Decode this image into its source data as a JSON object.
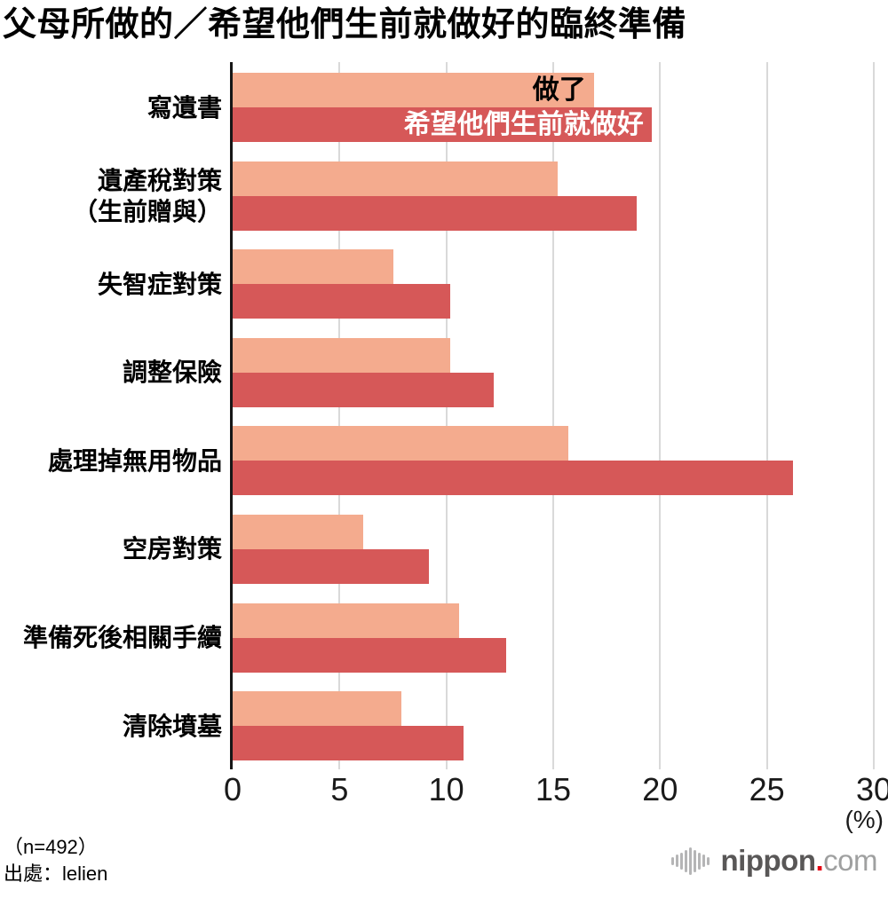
{
  "title": "父母所做的／希望他們生前就做好的臨終準備",
  "chart_data": {
    "type": "bar",
    "orientation": "horizontal",
    "title": "父母所做的／希望他們生前就做好的臨終準備",
    "categories": [
      "寫遺書",
      "遺產稅對策\n（生前贈與）",
      "失智症對策",
      "調整保險",
      "處理掉無用物品",
      "空房對策",
      "準備死後相關手續",
      "清除墳墓"
    ],
    "series": [
      {
        "name": "做了",
        "color": "#F4AB8E",
        "label_color": "#000000",
        "values": [
          16.9,
          15.2,
          7.5,
          10.2,
          15.7,
          6.1,
          10.6,
          7.9
        ]
      },
      {
        "name": "希望他們生前就做好",
        "color": "#D65858",
        "label_color": "#ffffff",
        "values": [
          19.6,
          18.9,
          10.2,
          12.2,
          26.2,
          9.2,
          12.8,
          10.8
        ]
      }
    ],
    "xlim": [
      0,
      30
    ],
    "xticks": [
      0,
      5,
      10,
      15,
      20,
      25,
      30
    ],
    "unit_label": "(%)",
    "grid": "vertical",
    "gridline_color": "#d9d9d9",
    "legend_position": "inside-first-bars"
  },
  "footer": {
    "sample": "（n=492）",
    "source": "出處：lelien"
  },
  "branding": {
    "name": "nippon",
    "dot": ".",
    "tld": "com"
  }
}
